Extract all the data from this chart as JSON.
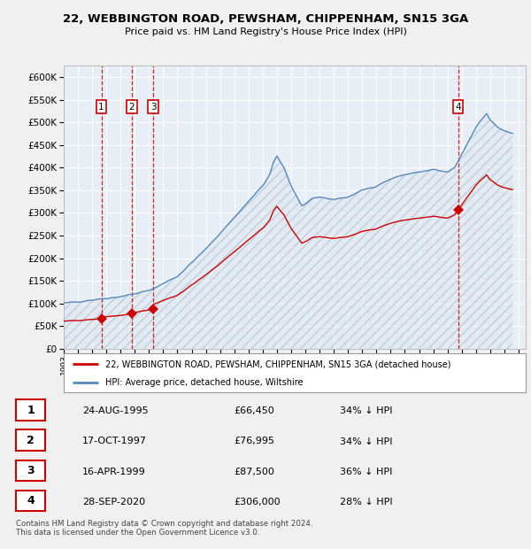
{
  "title": "22, WEBBINGTON ROAD, PEWSHAM, CHIPPENHAM, SN15 3GA",
  "subtitle": "Price paid vs. HM Land Registry's House Price Index (HPI)",
  "ylim": [
    0,
    625000
  ],
  "yticks": [
    0,
    50000,
    100000,
    150000,
    200000,
    250000,
    300000,
    350000,
    400000,
    450000,
    500000,
    550000,
    600000
  ],
  "xlim_start": 1993.0,
  "xlim_end": 2025.5,
  "background_color": "#f0f0f0",
  "plot_bg_color": "#e8eef5",
  "grid_color": "#ffffff",
  "hpi_color": "#5588bb",
  "price_color": "#cc0000",
  "vline_color": "#cc0000",
  "sales": [
    {
      "label": "1",
      "year": 1995.65,
      "price": 66450,
      "hpi_index": 109.0
    },
    {
      "label": "2",
      "year": 1997.79,
      "price": 76995,
      "hpi_index": 119.0
    },
    {
      "label": "3",
      "year": 1999.29,
      "price": 87500,
      "hpi_index": 130.5
    },
    {
      "label": "4",
      "year": 2020.74,
      "price": 306000,
      "hpi_index": 452.0
    }
  ],
  "legend_entries": [
    {
      "label": "22, WEBBINGTON ROAD, PEWSHAM, CHIPPENHAM, SN15 3GA (detached house)",
      "color": "#cc0000"
    },
    {
      "label": "HPI: Average price, detached house, Wiltshire",
      "color": "#5588bb"
    }
  ],
  "table_rows": [
    {
      "num": "1",
      "date": "24-AUG-1995",
      "price": "£66,450",
      "pct": "34% ↓ HPI"
    },
    {
      "num": "2",
      "date": "17-OCT-1997",
      "price": "£76,995",
      "pct": "34% ↓ HPI"
    },
    {
      "num": "3",
      "date": "16-APR-1999",
      "price": "£87,500",
      "pct": "36% ↓ HPI"
    },
    {
      "num": "4",
      "date": "28-SEP-2020",
      "price": "£306,000",
      "pct": "28% ↓ HPI"
    }
  ],
  "footer_text": "Contains HM Land Registry data © Crown copyright and database right 2024.\nThis data is licensed under the Open Government Licence v3.0."
}
